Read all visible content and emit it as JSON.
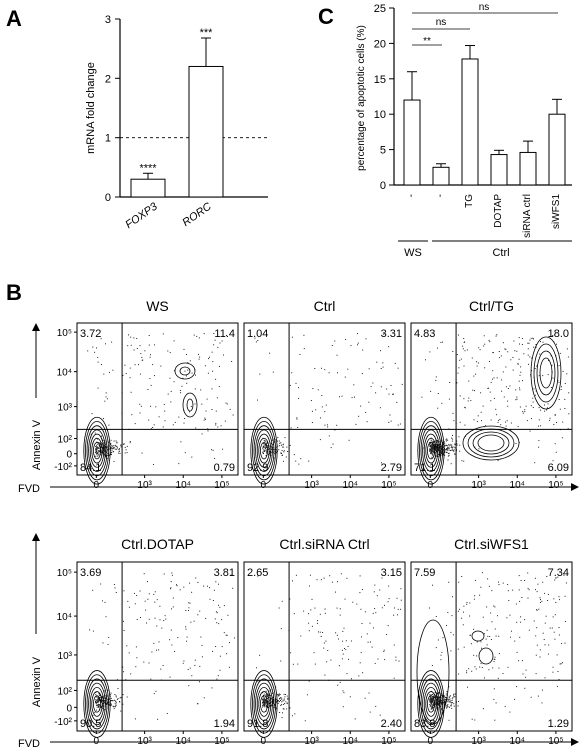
{
  "panel_labels": {
    "a": "A",
    "b": "B",
    "c": "C"
  },
  "panel_a": {
    "ylabel": "mRNA fold change",
    "yticks": [
      "0",
      "1",
      "2",
      "3"
    ],
    "categories": [
      "FOXP3",
      "RORC"
    ],
    "significance": [
      "****",
      "***"
    ]
  },
  "panel_c": {
    "ylabel": "percentage of apoptotic cells (%)",
    "yticks": [
      "0",
      "5",
      "10",
      "15",
      "20",
      "25"
    ],
    "tick_labels": [
      "-",
      "-",
      "TG",
      "DOTAP",
      "siRNA ctrl",
      "siWFS1"
    ],
    "group_ws": "WS",
    "group_ctrl": "Ctrl",
    "brackets": [
      "**",
      "ns",
      "ns"
    ]
  },
  "panel_b": {
    "y_axis_label": "Annexin V",
    "x_axis_label": "FVD",
    "y_ticks": [
      "10⁵",
      "10⁴",
      "10³",
      "10²",
      "0",
      "-10²"
    ],
    "x_ticks": [
      "0",
      "10³",
      "10⁴",
      "10⁵"
    ],
    "plots": [
      {
        "title": "WS",
        "ul": "3.72",
        "ur": "11.4",
        "ll": "84.1",
        "lr": "0.79"
      },
      {
        "title": "Ctrl",
        "ul": "1.04",
        "ur": "3.31",
        "ll": "92.9",
        "lr": "2.79"
      },
      {
        "title": "Ctrl/TG",
        "ul": "4.83",
        "ur": "18.0",
        "ll": "71.1",
        "lr": "6.09"
      },
      {
        "title": "Ctrl.DOTAP",
        "ul": "3.69",
        "ur": "3.81",
        "ll": "90.5",
        "lr": "1.94"
      },
      {
        "title": "Ctrl.siRNA Ctrl",
        "ul": "2.65",
        "ur": "3.15",
        "ll": "91.8",
        "lr": "2.40"
      },
      {
        "title": "Ctrl.siWFS1",
        "ul": "7.59",
        "ur": "7.34",
        "ll": "83.8",
        "lr": "1.29"
      }
    ]
  },
  "chart_data": [
    {
      "type": "bar",
      "categories": [
        "FOXP3",
        "RORC"
      ],
      "values": [
        0.3,
        2.2
      ],
      "errors": [
        0.1,
        0.48
      ],
      "ylabel": "mRNA fold change",
      "ylim": [
        0,
        3
      ],
      "reference_line": 1
    },
    {
      "type": "bar",
      "categories": [
        "-",
        "-",
        "TG",
        "DOTAP",
        "siRNA ctrl",
        "siWFS1"
      ],
      "values": [
        12.0,
        2.5,
        17.8,
        4.3,
        4.6,
        10.0
      ],
      "errors": [
        4.0,
        0.5,
        1.9,
        0.6,
        1.6,
        2.1
      ],
      "ylabel": "percentage of apoptotic cells (%)",
      "ylim": [
        0,
        25
      ]
    }
  ]
}
